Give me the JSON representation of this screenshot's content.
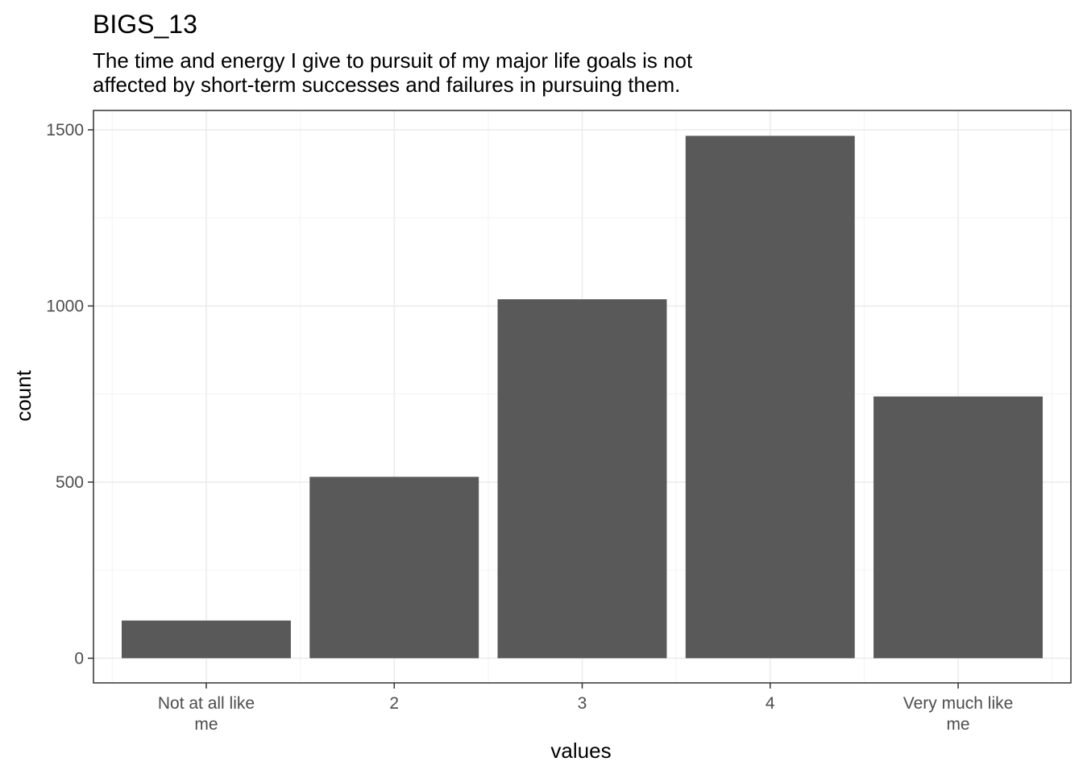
{
  "chart_data": {
    "type": "bar",
    "title": "BIGS_13",
    "subtitle": [
      "The time and energy I give to pursuit of my major life goals is not",
      "affected by short-term successes and failures in pursuing them."
    ],
    "xlabel": "values",
    "ylabel": "count",
    "categories": [
      [
        "Not at all like",
        "me"
      ],
      [
        "2"
      ],
      [
        "3"
      ],
      [
        "4"
      ],
      [
        "Very much like",
        "me"
      ]
    ],
    "values": [
      107,
      515,
      1019,
      1483,
      743
    ],
    "ylim": [
      -70,
      1555
    ],
    "yticks": [
      0,
      500,
      1000,
      1500
    ],
    "ytick_labels": [
      "0",
      "500",
      "1000",
      "1500"
    ],
    "grid": true,
    "theme": "bw",
    "colors": {
      "bar": "#595959",
      "grid_major": "#ebebeb",
      "grid_minor": "#f5f5f5",
      "panel_border": "#333333",
      "tick_text": "#4d4d4d"
    }
  }
}
